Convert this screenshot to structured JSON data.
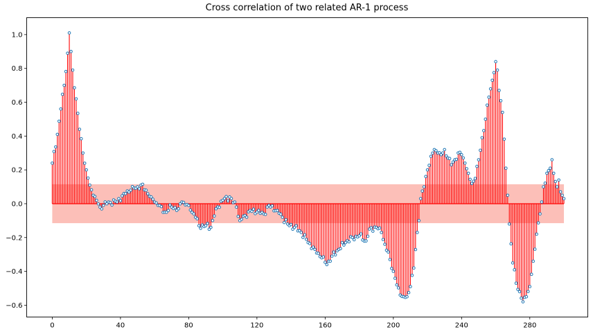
{
  "chart_data": {
    "type": "stem",
    "title": "Cross correlation of two related AR-1 process",
    "xlabel": "",
    "ylabel": "",
    "xlim": [
      -15,
      314
    ],
    "ylim": [
      -0.67,
      1.1
    ],
    "xticks": [
      0,
      40,
      80,
      120,
      160,
      200,
      240,
      280
    ],
    "yticks": [
      -0.6,
      -0.4,
      -0.2,
      0.0,
      0.2,
      0.4,
      0.6,
      0.8,
      1.0
    ],
    "ytick_labels": [
      "−0.6",
      "−0.4",
      "−0.2",
      "0.0",
      "0.2",
      "0.4",
      "0.6",
      "0.8",
      "1.0"
    ],
    "confidence_band": [
      -0.115,
      0.115
    ],
    "confidence_color": "#fa8072",
    "stem_color": "#ff0000",
    "marker_color": "#1f77b4",
    "grid": false,
    "anchors": [
      [
        0,
        0.24
      ],
      [
        3,
        0.41
      ],
      [
        5,
        0.56
      ],
      [
        7,
        0.7
      ],
      [
        9,
        0.89
      ],
      [
        10,
        1.01
      ],
      [
        11,
        0.9
      ],
      [
        12,
        0.79
      ],
      [
        14,
        0.62
      ],
      [
        16,
        0.44
      ],
      [
        18,
        0.3
      ],
      [
        20,
        0.2
      ],
      [
        22,
        0.11
      ],
      [
        24,
        0.05
      ],
      [
        26,
        0.02
      ],
      [
        28,
        -0.02
      ],
      [
        30,
        -0.01
      ],
      [
        33,
        0.01
      ],
      [
        38,
        0.01
      ],
      [
        42,
        0.06
      ],
      [
        46,
        0.08
      ],
      [
        50,
        0.1
      ],
      [
        52,
        0.11
      ],
      [
        55,
        0.08
      ],
      [
        58,
        0.04
      ],
      [
        62,
        -0.01
      ],
      [
        66,
        -0.05
      ],
      [
        70,
        -0.02
      ],
      [
        74,
        -0.03
      ],
      [
        76,
        0.01
      ],
      [
        80,
        -0.01
      ],
      [
        84,
        -0.08
      ],
      [
        86,
        -0.13
      ],
      [
        90,
        -0.13
      ],
      [
        93,
        -0.14
      ],
      [
        96,
        -0.03
      ],
      [
        100,
        0.02
      ],
      [
        104,
        0.04
      ],
      [
        108,
        -0.02
      ],
      [
        110,
        -0.1
      ],
      [
        113,
        -0.07
      ],
      [
        116,
        -0.04
      ],
      [
        120,
        -0.05
      ],
      [
        124,
        -0.06
      ],
      [
        127,
        -0.01
      ],
      [
        132,
        -0.04
      ],
      [
        135,
        -0.08
      ],
      [
        138,
        -0.12
      ],
      [
        142,
        -0.14
      ],
      [
        146,
        -0.17
      ],
      [
        150,
        -0.23
      ],
      [
        154,
        -0.27
      ],
      [
        158,
        -0.32
      ],
      [
        161,
        -0.36
      ],
      [
        164,
        -0.31
      ],
      [
        168,
        -0.27
      ],
      [
        172,
        -0.23
      ],
      [
        176,
        -0.2
      ],
      [
        180,
        -0.19
      ],
      [
        184,
        -0.22
      ],
      [
        186,
        -0.15
      ],
      [
        190,
        -0.14
      ],
      [
        193,
        -0.17
      ],
      [
        195,
        -0.24
      ],
      [
        198,
        -0.33
      ],
      [
        200,
        -0.4
      ],
      [
        202,
        -0.48
      ],
      [
        204,
        -0.54
      ],
      [
        206,
        -0.55
      ],
      [
        208,
        -0.55
      ],
      [
        210,
        -0.49
      ],
      [
        212,
        -0.38
      ],
      [
        214,
        -0.17
      ],
      [
        215,
        -0.1
      ],
      [
        216,
        0.03
      ],
      [
        218,
        0.1
      ],
      [
        220,
        0.2
      ],
      [
        222,
        0.28
      ],
      [
        224,
        0.32
      ],
      [
        226,
        0.3
      ],
      [
        228,
        0.29
      ],
      [
        230,
        0.32
      ],
      [
        232,
        0.27
      ],
      [
        234,
        0.23
      ],
      [
        236,
        0.26
      ],
      [
        238,
        0.3
      ],
      [
        240,
        0.29
      ],
      [
        242,
        0.24
      ],
      [
        244,
        0.18
      ],
      [
        246,
        0.12
      ],
      [
        248,
        0.15
      ],
      [
        250,
        0.26
      ],
      [
        252,
        0.39
      ],
      [
        254,
        0.5
      ],
      [
        256,
        0.63
      ],
      [
        258,
        0.73
      ],
      [
        260,
        0.84
      ],
      [
        261,
        0.79
      ],
      [
        262,
        0.67
      ],
      [
        264,
        0.54
      ],
      [
        266,
        0.21
      ],
      [
        267,
        0.05
      ],
      [
        268,
        -0.12
      ],
      [
        270,
        -0.35
      ],
      [
        272,
        -0.47
      ],
      [
        274,
        -0.52
      ],
      [
        276,
        -0.58
      ],
      [
        278,
        -0.55
      ],
      [
        280,
        -0.49
      ],
      [
        282,
        -0.34
      ],
      [
        284,
        -0.18
      ],
      [
        286,
        -0.06
      ],
      [
        287,
        0.01
      ],
      [
        288,
        0.1
      ],
      [
        290,
        0.18
      ],
      [
        292,
        0.21
      ],
      [
        293,
        0.26
      ],
      [
        294,
        0.18
      ],
      [
        296,
        0.1
      ],
      [
        297,
        0.14
      ],
      [
        298,
        0.07
      ],
      [
        299,
        0.05
      ],
      [
        300,
        0.03
      ]
    ]
  }
}
